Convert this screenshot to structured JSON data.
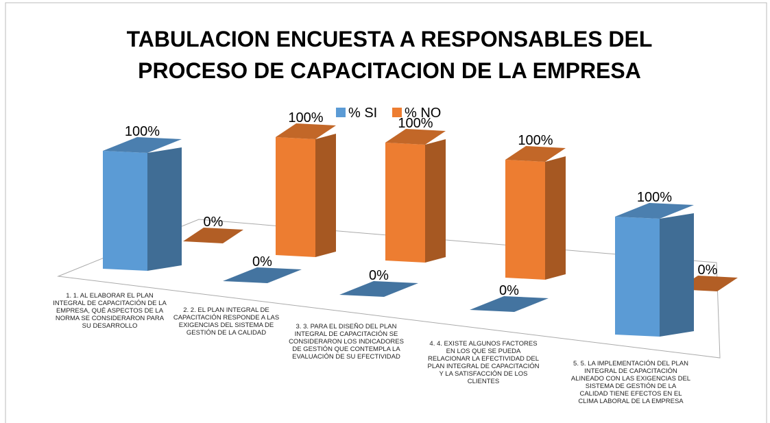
{
  "chart_data": {
    "type": "bar3d",
    "title": "TABULACION ENCUESTA A RESPONSABLES DEL PROCESO DE CAPACITACION DE LA EMPRESA",
    "categories": [
      "1. 1. AL ELABORAR EL PLAN INTEGRAL DE CAPACITACIÓN DE LA EMPRESA, QUÉ ASPECTOS DE LA NORMA SE CONSIDERARON PARA SU DESARROLLO",
      "2. 2. EL PLAN INTEGRAL DE CAPACITACIÓN RESPONDE A LAS EXIGENCIAS DEL SISTEMA DE GESTIÓN DE LA CALIDAD",
      "3. 3. PARA EL DISEÑO DEL PLAN INTEGRAL DE CAPACITACIÓN SE CONSIDERARON LOS INDICADORES DE GESTIÓN QUE CONTEMPLA LA EVALUACIÓN DE SU EFECTIVIDAD",
      "4. 4. EXISTE ALGUNOS FACTORES EN LOS QUE SE PUEDA RELACIONAR LA EFECTIVIDAD DEL PLAN INTEGRAL DE CAPACITACIÓN Y LA SATISFACCIÓN DE LOS CLIENTES",
      "5. 5. LA IMPLEMENTACIÓN DEL PLAN INTEGRAL DE CAPACITACIÓN ALINEADO CON LAS EXIGENCIAS DEL SISTEMA DE GESTIÓN DE LA CALIDAD TIENE EFECTOS EN EL CLIMA LABORAL DE LA EMPRESA"
    ],
    "series": [
      {
        "name": "% SI",
        "color": "#5b9bd5",
        "values": [
          100,
          0,
          0,
          0,
          100
        ],
        "value_labels": [
          "100%",
          "0%",
          "0%",
          "0%",
          "100%"
        ]
      },
      {
        "name": "% NO",
        "color": "#ed7d31",
        "values": [
          0,
          100,
          100,
          100,
          0
        ],
        "value_labels": [
          "0%",
          "100%",
          "100%",
          "100%",
          "0%"
        ]
      }
    ],
    "ylim": [
      0,
      100
    ],
    "legend": "top"
  }
}
